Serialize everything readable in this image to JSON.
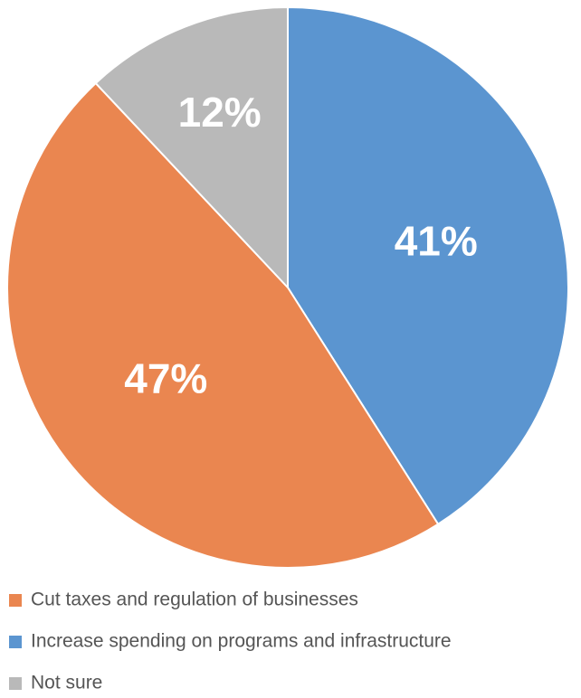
{
  "chart_data": {
    "type": "pie",
    "categories": [
      "Cut taxes and regulation of businesses",
      "Increase spending on programs and infrastructure",
      "Not sure"
    ],
    "values": [
      47,
      41,
      12
    ],
    "value_labels": [
      "47%",
      "41%",
      "12%"
    ],
    "colors": [
      "#ea8650",
      "#5b95d0",
      "#b9b9b9"
    ],
    "legend": "bottom"
  }
}
